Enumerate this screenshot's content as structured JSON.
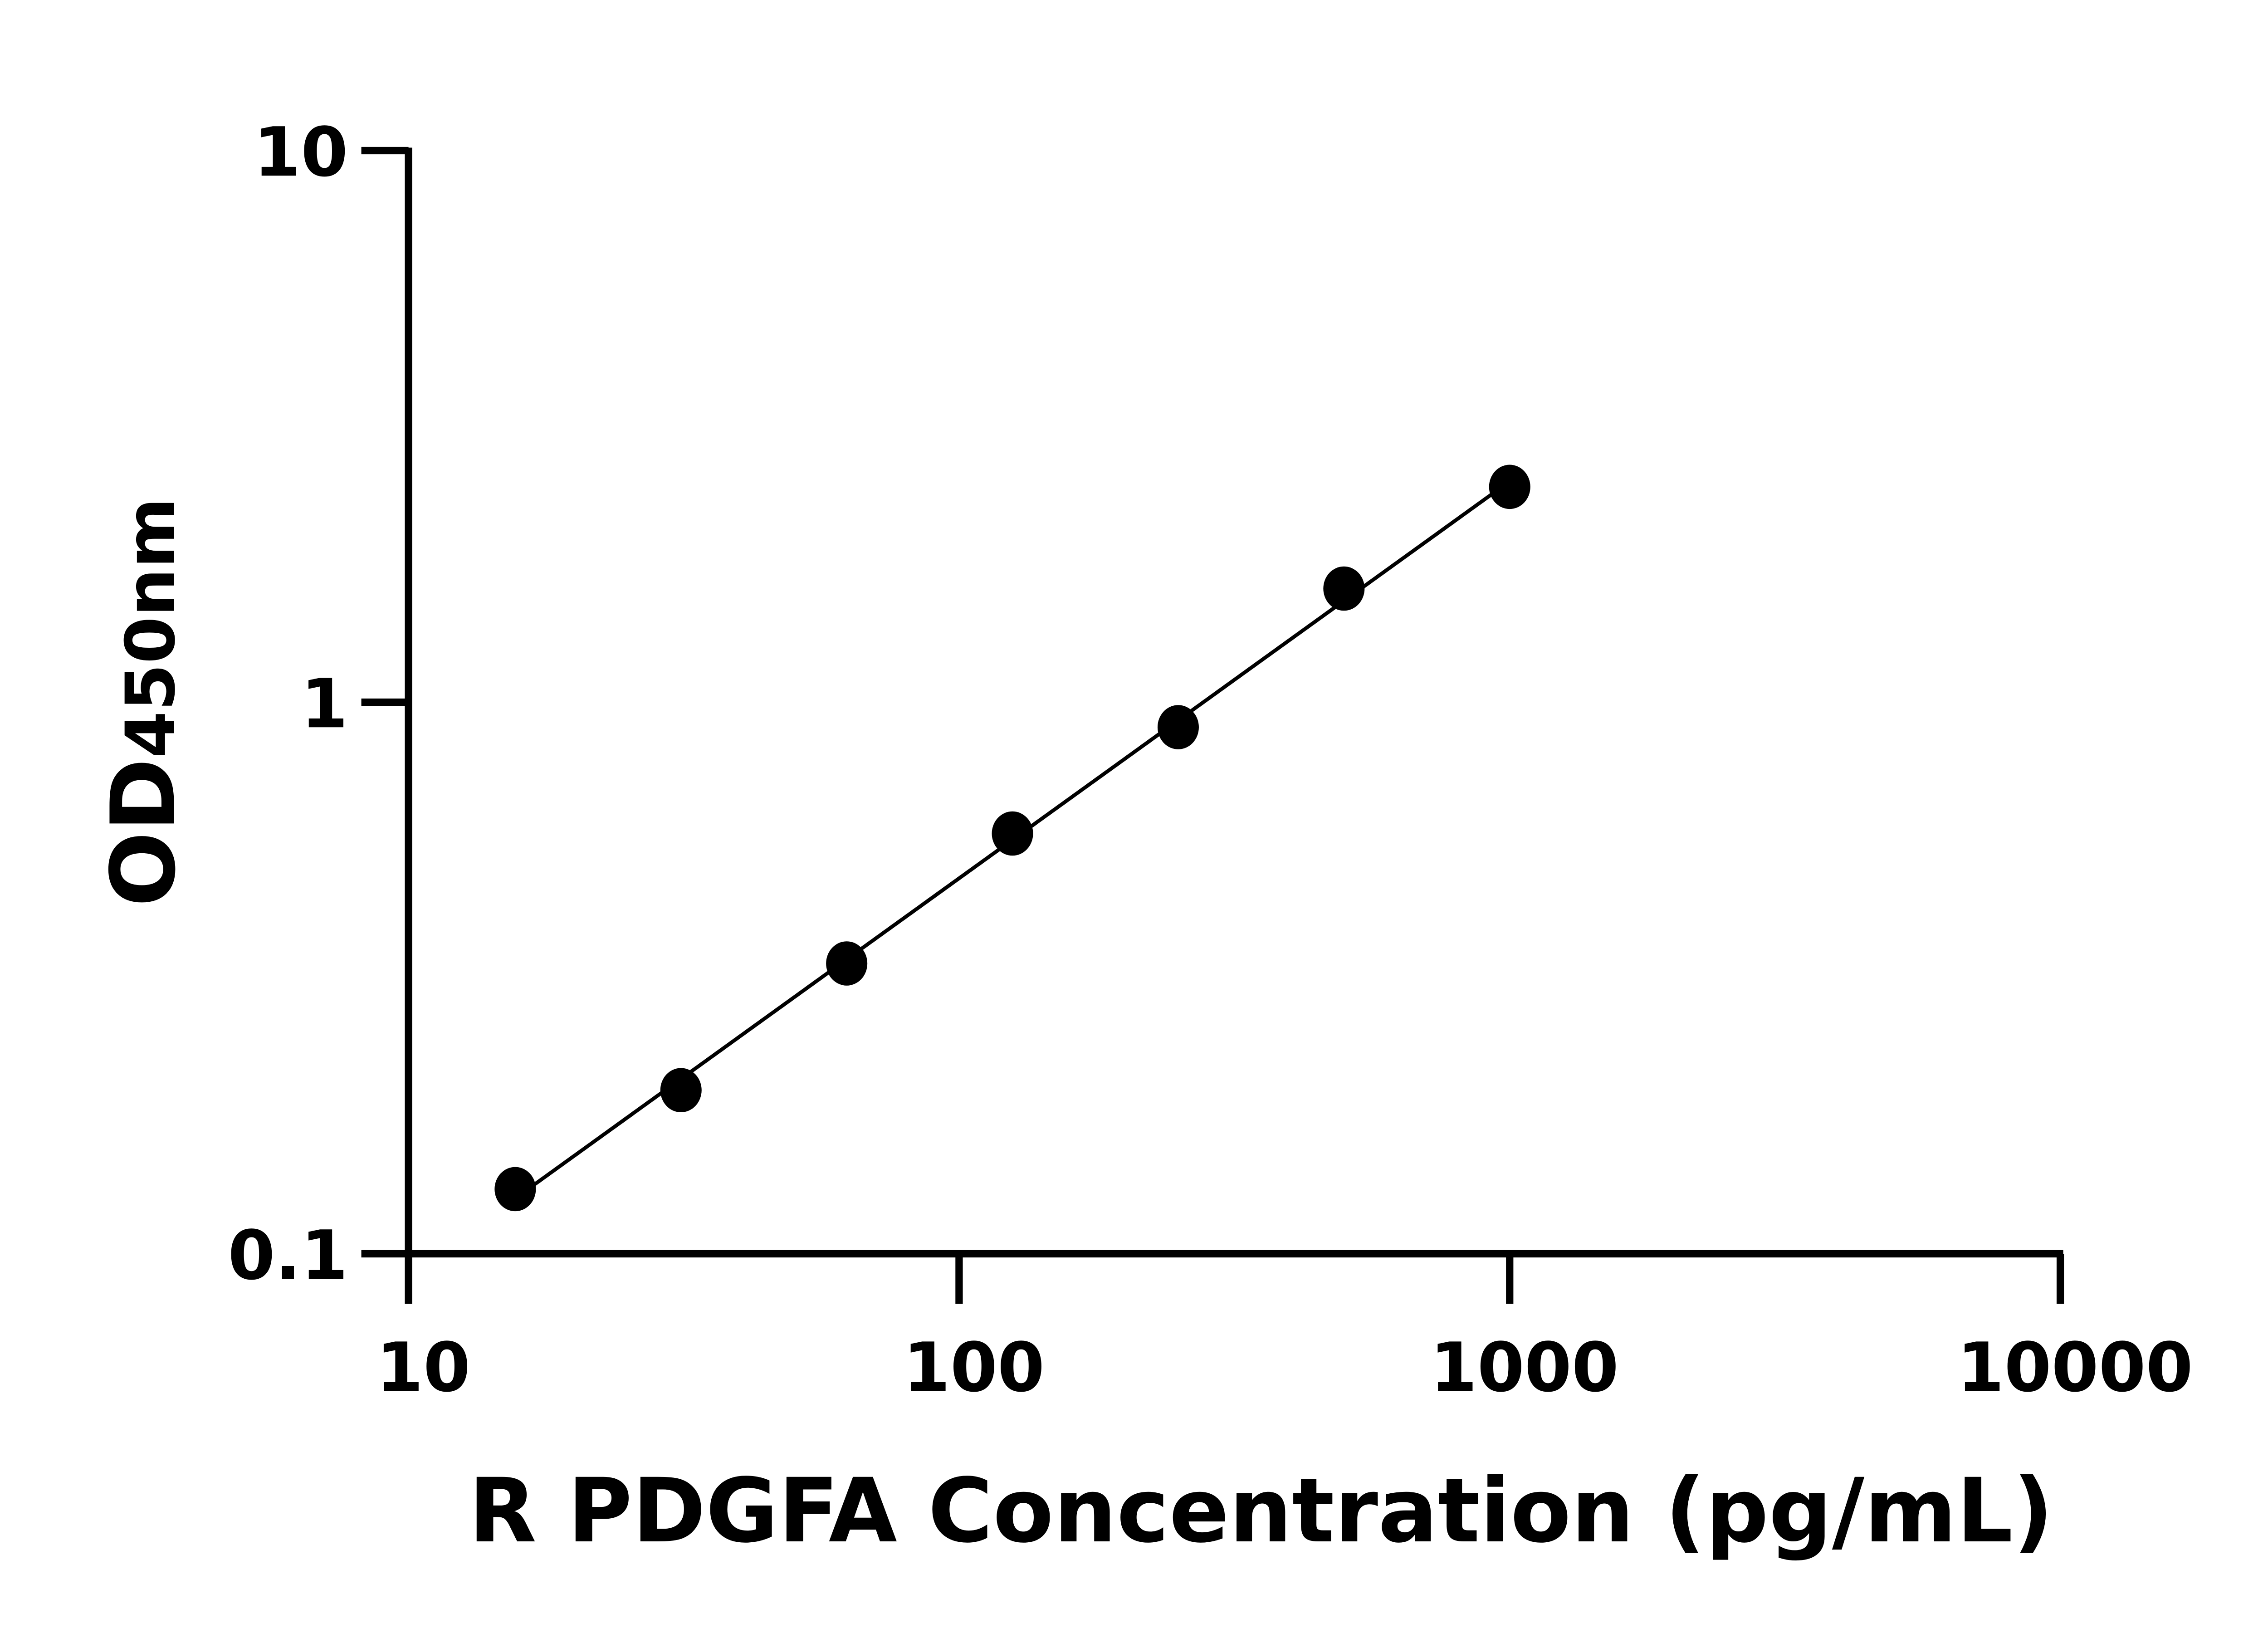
{
  "chart_data": {
    "type": "scatter",
    "xlabel": "R PDGFA Concentration (pg/mL)",
    "ylabel_main": "OD",
    "ylabel_sub": "450nm",
    "xscale": "log",
    "yscale": "log",
    "xlim": [
      10,
      10000
    ],
    "ylim": [
      0.1,
      10
    ],
    "xticks": [
      "10",
      "100",
      "1000",
      "10000"
    ],
    "yticks": [
      "0.1",
      "1",
      "10"
    ],
    "grid": false,
    "fit_line": true,
    "x": [
      15.625,
      31.25,
      62.5,
      125,
      250,
      500,
      1000
    ],
    "y": [
      0.131,
      0.198,
      0.336,
      0.578,
      0.901,
      1.607,
      2.457
    ],
    "color": "#000000"
  }
}
